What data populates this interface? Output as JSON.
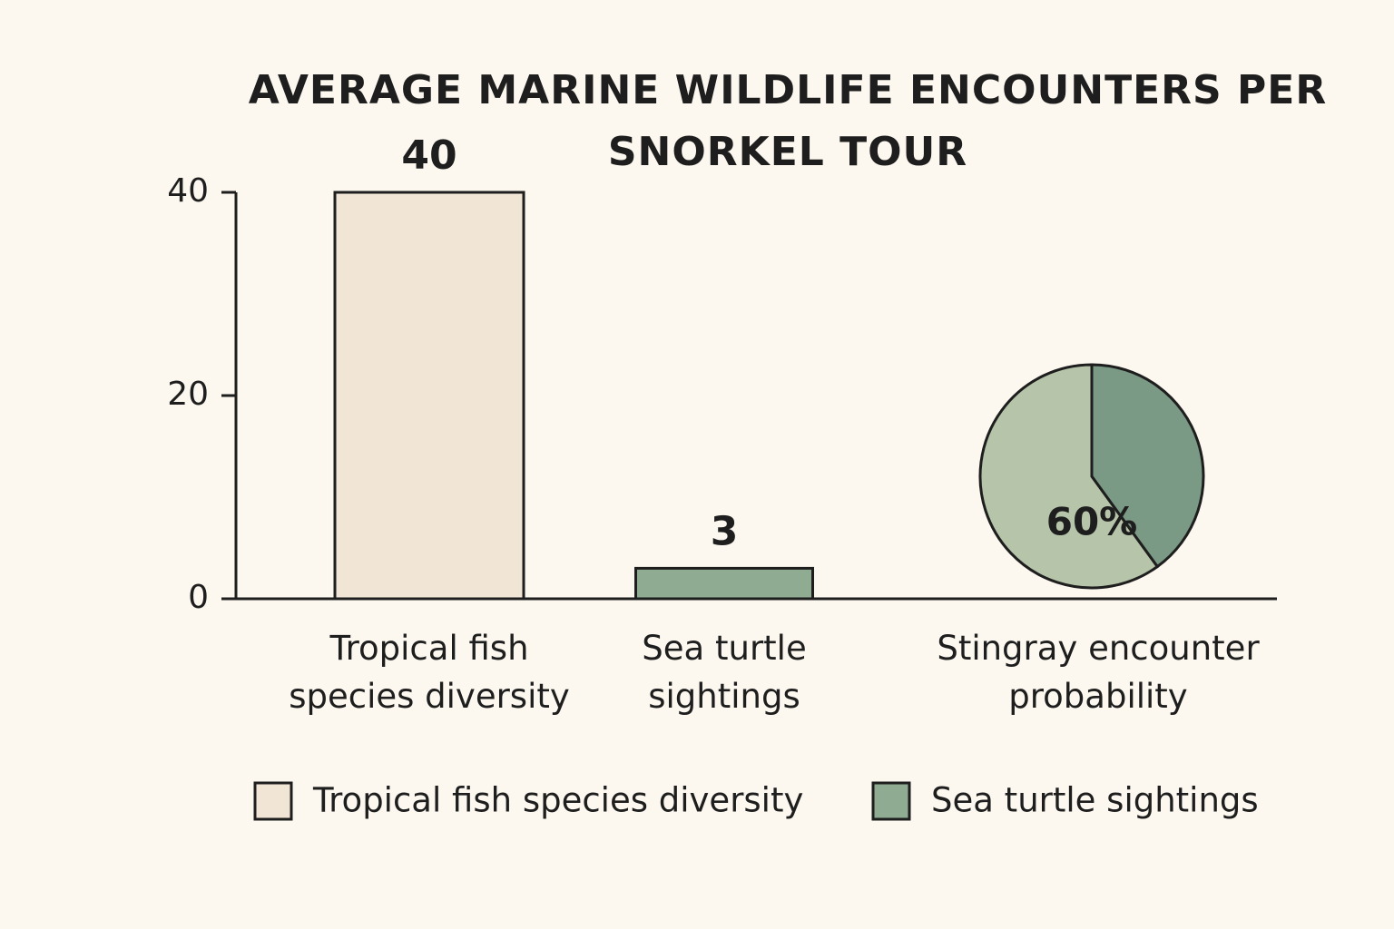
{
  "chart_data": [
    {
      "type": "bar",
      "title": "AVERAGE MARINE WILDLIFE ENCOUNTERS PER SNORKEL TOUR",
      "categories": [
        "Tropical fish species diversity",
        "Sea turtle sightings",
        "Stingray encounter probability"
      ],
      "series": [
        {
          "name": "Tropical fish species diversity",
          "color": "#f1e6d6",
          "values": [
            40,
            null,
            null
          ]
        },
        {
          "name": "Sea turtle sightings",
          "color": "#8fab92",
          "values": [
            null,
            3,
            null
          ]
        }
      ],
      "ylim": [
        0,
        40
      ],
      "yticks": [
        0,
        20,
        40
      ],
      "legend": "bottom"
    },
    {
      "type": "pie",
      "values": [
        60
      ],
      "value_labels": [
        "60%"
      ],
      "colors": [
        "#b6c4a9",
        "#7b9a86"
      ]
    }
  ]
}
